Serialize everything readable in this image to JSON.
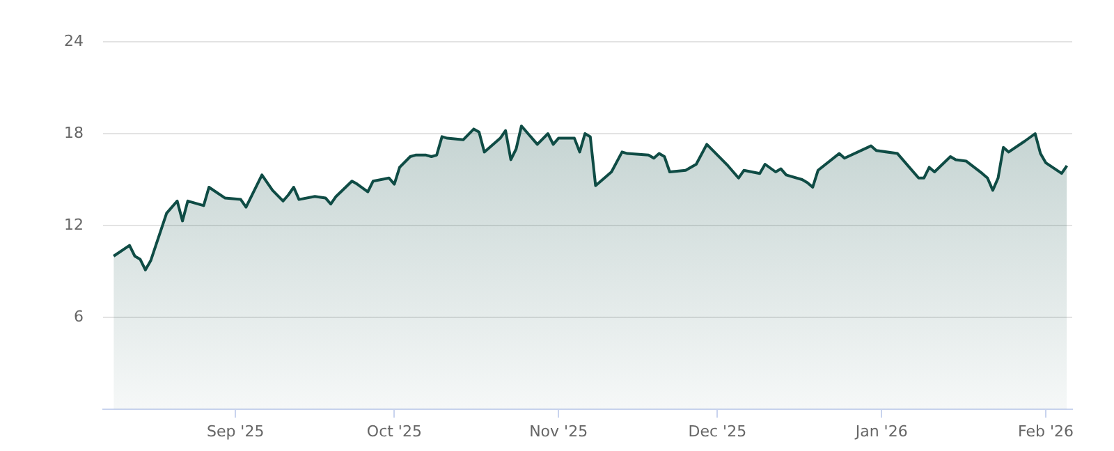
{
  "chart_data": {
    "type": "area",
    "x": [
      "2025-08-09",
      "2025-08-12",
      "2025-08-13",
      "2025-08-14",
      "2025-08-15",
      "2025-08-16",
      "2025-08-19",
      "2025-08-21",
      "2025-08-22",
      "2025-08-23",
      "2025-08-26",
      "2025-08-27",
      "2025-08-30",
      "2025-09-02",
      "2025-09-03",
      "2025-09-06",
      "2025-09-08",
      "2025-09-10",
      "2025-09-11",
      "2025-09-12",
      "2025-09-13",
      "2025-09-16",
      "2025-09-18",
      "2025-09-19",
      "2025-09-20",
      "2025-09-23",
      "2025-09-24",
      "2025-09-26",
      "2025-09-27",
      "2025-09-30",
      "2025-10-01",
      "2025-10-02",
      "2025-10-04",
      "2025-10-05",
      "2025-10-07",
      "2025-10-08",
      "2025-10-09",
      "2025-10-10",
      "2025-10-11",
      "2025-10-14",
      "2025-10-16",
      "2025-10-17",
      "2025-10-18",
      "2025-10-21",
      "2025-10-22",
      "2025-10-23",
      "2025-10-24",
      "2025-10-25",
      "2025-10-28",
      "2025-10-30",
      "2025-10-31",
      "2025-11-01",
      "2025-11-04",
      "2025-11-05",
      "2025-11-06",
      "2025-11-07",
      "2025-11-08",
      "2025-11-11",
      "2025-11-13",
      "2025-11-14",
      "2025-11-18",
      "2025-11-19",
      "2025-11-20",
      "2025-11-21",
      "2025-11-22",
      "2025-11-25",
      "2025-11-27",
      "2025-11-29",
      "2025-12-03",
      "2025-12-05",
      "2025-12-06",
      "2025-12-09",
      "2025-12-10",
      "2025-12-12",
      "2025-12-13",
      "2025-12-14",
      "2025-12-17",
      "2025-12-18",
      "2025-12-19",
      "2025-12-20",
      "2025-12-24",
      "2025-12-25",
      "2025-12-30",
      "2025-12-31",
      "2026-01-04",
      "2026-01-08",
      "2026-01-09",
      "2026-01-10",
      "2026-01-11",
      "2026-01-14",
      "2026-01-15",
      "2026-01-17",
      "2026-01-20",
      "2026-01-21",
      "2026-01-22",
      "2026-01-23",
      "2026-01-24",
      "2026-01-25",
      "2026-01-28",
      "2026-01-30",
      "2026-01-31",
      "2026-02-01",
      "2026-02-04",
      "2026-02-05"
    ],
    "series": [
      {
        "color": "#0f4c45",
        "values": [
          10.0,
          10.7,
          10.0,
          9.8,
          9.1,
          9.7,
          12.8,
          13.6,
          12.3,
          13.6,
          13.3,
          14.5,
          13.8,
          13.7,
          13.2,
          15.3,
          14.3,
          13.6,
          14.0,
          14.5,
          13.7,
          13.9,
          13.8,
          13.4,
          13.9,
          14.9,
          14.7,
          14.2,
          14.9,
          15.1,
          14.7,
          15.8,
          16.5,
          16.6,
          16.6,
          16.5,
          16.6,
          17.8,
          17.7,
          17.6,
          18.3,
          18.1,
          16.8,
          17.7,
          18.2,
          16.3,
          17.0,
          18.5,
          17.3,
          18.0,
          17.3,
          17.7,
          17.7,
          16.8,
          18.0,
          17.8,
          14.6,
          15.5,
          16.8,
          16.7,
          16.6,
          16.4,
          16.7,
          16.5,
          15.5,
          15.6,
          16.0,
          17.3,
          15.9,
          15.1,
          15.6,
          15.4,
          16.0,
          15.5,
          15.7,
          15.3,
          15.0,
          14.8,
          14.5,
          15.6,
          16.7,
          16.4,
          17.2,
          16.9,
          16.7,
          15.1,
          15.1,
          15.8,
          15.5,
          16.5,
          16.3,
          16.2,
          15.4,
          15.1,
          14.3,
          15.1,
          17.1,
          16.8,
          17.5,
          18.0,
          16.7,
          16.1,
          15.4,
          15.9
        ]
      }
    ],
    "xlim": [
      "2025-08-07",
      "2026-02-06"
    ],
    "xticks": [
      {
        "value": "2025-09-01",
        "label": "Sep '25"
      },
      {
        "value": "2025-10-01",
        "label": "Oct '25"
      },
      {
        "value": "2025-11-01",
        "label": "Nov '25"
      },
      {
        "value": "2025-12-01",
        "label": "Dec '25"
      },
      {
        "value": "2026-01-01",
        "label": "Jan '26"
      },
      {
        "value": "2026-02-01",
        "label": "Feb '26"
      }
    ],
    "ylim": [
      0,
      24
    ],
    "yticks": [
      6,
      12,
      18,
      24
    ],
    "grid": "y"
  }
}
